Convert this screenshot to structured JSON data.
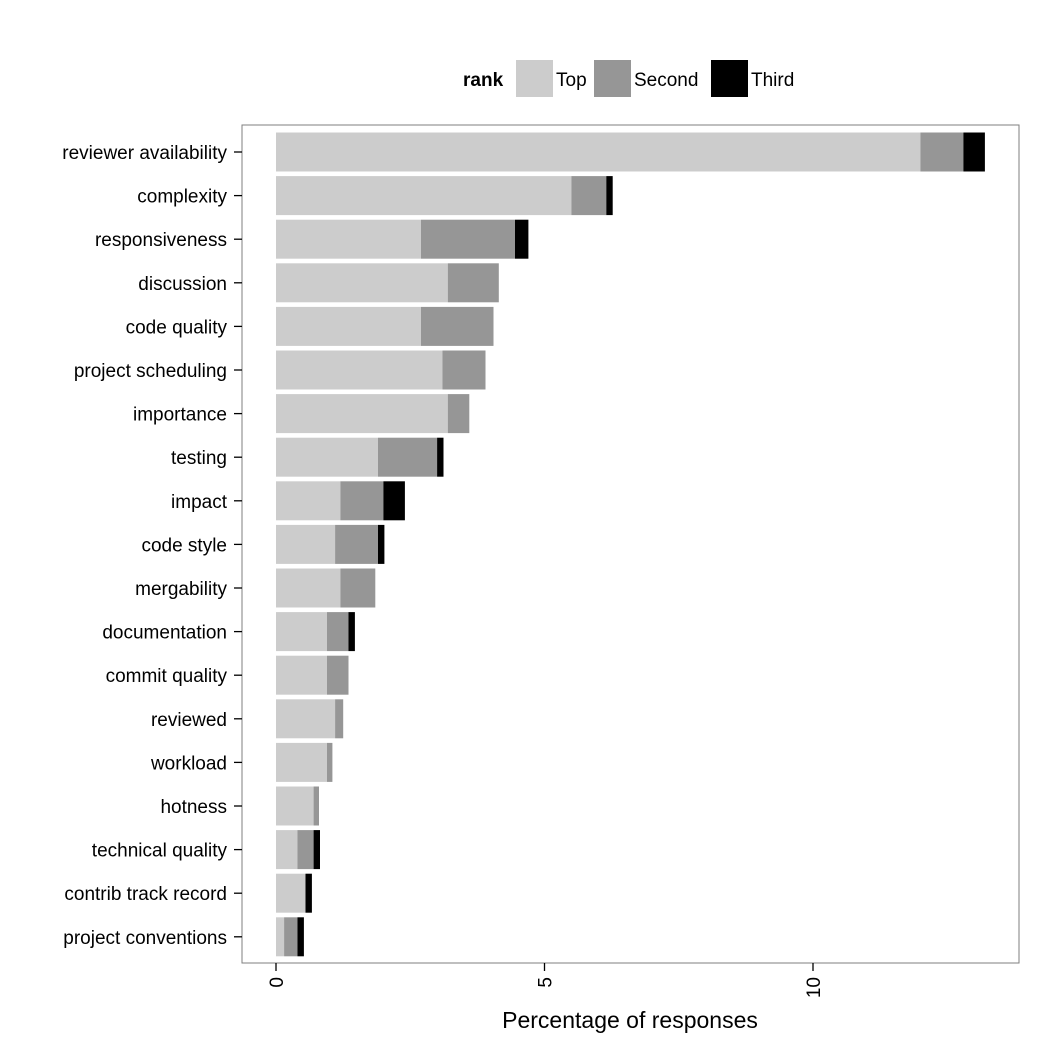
{
  "chart_data": {
    "type": "bar",
    "orientation": "horizontal",
    "stacked": true,
    "categories": [
      "reviewer availability",
      "complexity",
      "responsiveness",
      "discussion",
      "code quality",
      "project scheduling",
      "importance",
      "testing",
      "impact",
      "code style",
      "mergability",
      "documentation",
      "commit quality",
      "reviewed",
      "workload",
      "hotness",
      "technical quality",
      "contrib track record",
      "project conventions"
    ],
    "series": [
      {
        "name": "Top",
        "color": "#cccccc",
        "values": [
          12.0,
          5.5,
          2.7,
          3.2,
          2.7,
          3.1,
          3.2,
          1.9,
          1.2,
          1.1,
          1.2,
          0.95,
          0.95,
          1.1,
          0.95,
          0.7,
          0.4,
          0.55,
          0.15
        ]
      },
      {
        "name": "Second",
        "color": "#969696",
        "values": [
          0.8,
          0.65,
          1.75,
          0.95,
          1.35,
          0.8,
          0.4,
          1.1,
          0.8,
          0.8,
          0.65,
          0.4,
          0.4,
          0.15,
          0.1,
          0.1,
          0.3,
          0.0,
          0.25
        ]
      },
      {
        "name": "Third",
        "color": "#000000",
        "values": [
          0.4,
          0.12,
          0.25,
          0.0,
          0.0,
          0.0,
          0.0,
          0.12,
          0.4,
          0.12,
          0.0,
          0.12,
          0.0,
          0.0,
          0.0,
          0.0,
          0.12,
          0.12,
          0.12
        ]
      }
    ],
    "legend": {
      "title": "rank",
      "position": "top"
    },
    "xlabel": "Percentage of responses",
    "ylabel": "",
    "xlim": [
      -0.6,
      13.9
    ],
    "xticks": [
      0,
      5,
      10
    ],
    "tick_labels": [
      "0",
      "5",
      "10"
    ],
    "grid": false
  }
}
